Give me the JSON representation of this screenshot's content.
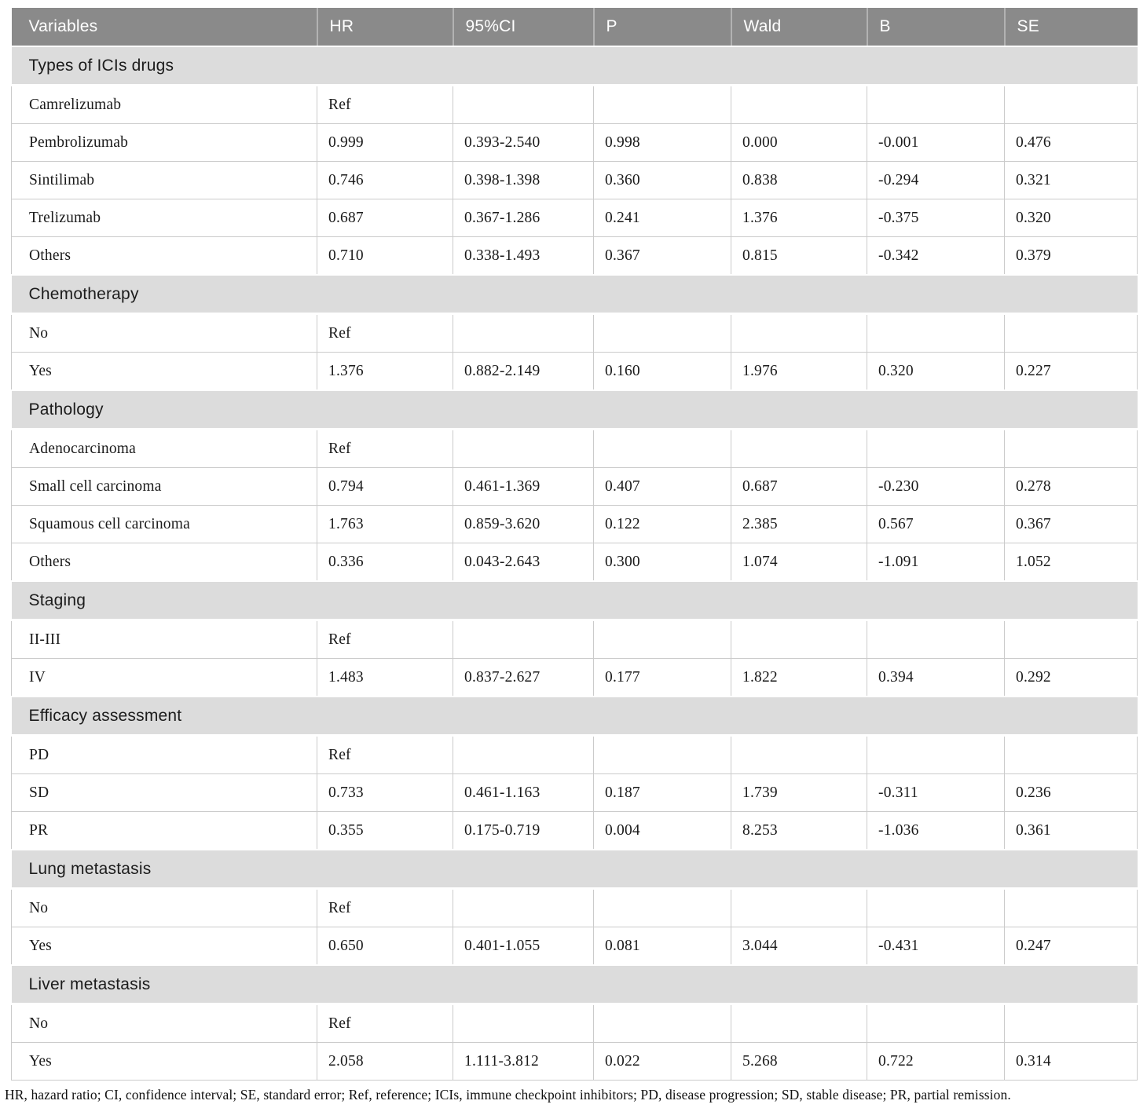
{
  "table": {
    "columns": [
      "Variables",
      "HR",
      "95%CI",
      "P",
      "Wald",
      "B",
      "SE"
    ],
    "sections": [
      {
        "title": "Types of ICIs drugs",
        "rows": [
          [
            "Camrelizumab",
            "Ref",
            "",
            "",
            "",
            "",
            ""
          ],
          [
            "Pembrolizumab",
            "0.999",
            "0.393-2.540",
            "0.998",
            "0.000",
            "-0.001",
            "0.476"
          ],
          [
            "Sintilimab",
            "0.746",
            "0.398-1.398",
            "0.360",
            "0.838",
            "-0.294",
            "0.321"
          ],
          [
            "Trelizumab",
            "0.687",
            "0.367-1.286",
            "0.241",
            "1.376",
            "-0.375",
            "0.320"
          ],
          [
            "Others",
            "0.710",
            "0.338-1.493",
            "0.367",
            "0.815",
            "-0.342",
            "0.379"
          ]
        ]
      },
      {
        "title": "Chemotherapy",
        "rows": [
          [
            "No",
            "Ref",
            "",
            "",
            "",
            "",
            ""
          ],
          [
            "Yes",
            "1.376",
            "0.882-2.149",
            "0.160",
            "1.976",
            "0.320",
            "0.227"
          ]
        ]
      },
      {
        "title": "Pathology",
        "rows": [
          [
            "Adenocarcinoma",
            "Ref",
            "",
            "",
            "",
            "",
            ""
          ],
          [
            "Small cell carcinoma",
            "0.794",
            "0.461-1.369",
            "0.407",
            "0.687",
            "-0.230",
            "0.278"
          ],
          [
            "Squamous cell carcinoma",
            "1.763",
            "0.859-3.620",
            "0.122",
            "2.385",
            "0.567",
            "0.367"
          ],
          [
            "Others",
            "0.336",
            "0.043-2.643",
            "0.300",
            "1.074",
            "-1.091",
            "1.052"
          ]
        ]
      },
      {
        "title": "Staging",
        "rows": [
          [
            "II-III",
            "Ref",
            "",
            "",
            "",
            "",
            ""
          ],
          [
            "IV",
            "1.483",
            "0.837-2.627",
            "0.177",
            "1.822",
            "0.394",
            "0.292"
          ]
        ]
      },
      {
        "title": "Efficacy assessment",
        "rows": [
          [
            "PD",
            "Ref",
            "",
            "",
            "",
            "",
            ""
          ],
          [
            "SD",
            "0.733",
            "0.461-1.163",
            "0.187",
            "1.739",
            "-0.311",
            "0.236"
          ],
          [
            "PR",
            "0.355",
            "0.175-0.719",
            "0.004",
            "8.253",
            "-1.036",
            "0.361"
          ]
        ]
      },
      {
        "title": "Lung metastasis",
        "rows": [
          [
            "No",
            "Ref",
            "",
            "",
            "",
            "",
            ""
          ],
          [
            "Yes",
            "0.650",
            "0.401-1.055",
            "0.081",
            "3.044",
            "-0.431",
            "0.247"
          ]
        ]
      },
      {
        "title": "Liver metastasis",
        "rows": [
          [
            "No",
            "Ref",
            "",
            "",
            "",
            "",
            ""
          ],
          [
            "Yes",
            "2.058",
            "1.111-3.812",
            "0.022",
            "5.268",
            "0.722",
            "0.314"
          ]
        ]
      }
    ],
    "footnote": "HR, hazard ratio; CI, confidence interval; SE, standard error; Ref, reference; ICIs, immune checkpoint inhibitors; PD, disease progression; SD, stable disease; PR, partial remission.",
    "colors": {
      "header_bg": "#8a8a8a",
      "header_text": "#ffffff",
      "section_bg": "#dcdcdc",
      "row_border": "#cbcbcb",
      "data_text": "#1a1a1a"
    }
  }
}
